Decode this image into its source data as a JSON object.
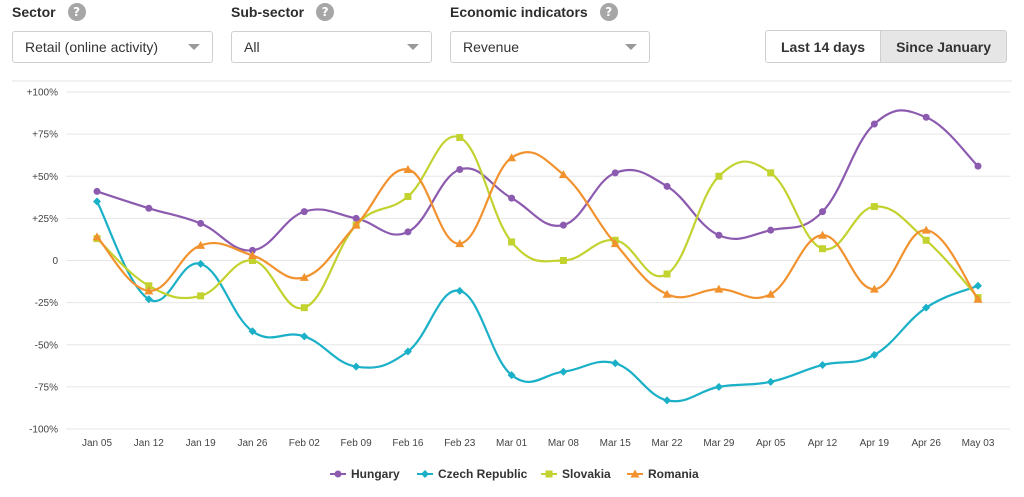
{
  "filters": {
    "sector": {
      "label": "Sector",
      "value": "Retail (online activity)"
    },
    "subsector": {
      "label": "Sub-sector",
      "value": "All"
    },
    "indicators": {
      "label": "Economic indicators",
      "value": "Revenue"
    },
    "help_glyph": "?"
  },
  "range_toggle": {
    "options": [
      "Last 14 days",
      "Since January"
    ],
    "selected": "Since January"
  },
  "chart_data": {
    "type": "line",
    "categories": [
      "Jan 05",
      "Jan 12",
      "Jan 19",
      "Jan 26",
      "Feb 02",
      "Feb 09",
      "Feb 16",
      "Feb 23",
      "Mar 01",
      "Mar 08",
      "Mar 15",
      "Mar 22",
      "Mar 29",
      "Apr 05",
      "Apr 12",
      "Apr 19",
      "Apr 26",
      "May 03"
    ],
    "y_ticks": [
      "-100%",
      "-75%",
      "-50%",
      "-25%",
      "0",
      "+25%",
      "+50%",
      "+75%",
      "+100%"
    ],
    "ylim": [
      -100,
      100
    ],
    "grid": true,
    "legend_position": "bottom",
    "series": [
      {
        "name": "Hungary",
        "color": "#8c5bb0",
        "marker": "circle",
        "values": [
          41,
          31,
          22,
          6,
          29,
          25,
          17,
          54,
          37,
          21,
          52,
          44,
          15,
          18,
          29,
          81,
          85,
          56
        ]
      },
      {
        "name": "Czech Republic",
        "color": "#1ab0c8",
        "marker": "diamond",
        "values": [
          35,
          -23,
          -2,
          -42,
          -45,
          -63,
          -54,
          -18,
          -68,
          -66,
          -61,
          -83,
          -75,
          -72,
          -62,
          -56,
          -28,
          -15
        ]
      },
      {
        "name": "Slovakia",
        "color": "#c2d22e",
        "marker": "square",
        "values": [
          13,
          -15,
          -21,
          0,
          -28,
          21,
          38,
          73,
          11,
          0,
          12,
          -8,
          50,
          52,
          7,
          32,
          12,
          -22
        ]
      },
      {
        "name": "Romania",
        "color": "#f2922e",
        "marker": "triangle",
        "values": [
          14,
          -18,
          9,
          3,
          -10,
          21,
          54,
          10,
          61,
          51,
          10,
          -20,
          -17,
          -20,
          15,
          -17,
          18,
          -23
        ]
      }
    ]
  }
}
